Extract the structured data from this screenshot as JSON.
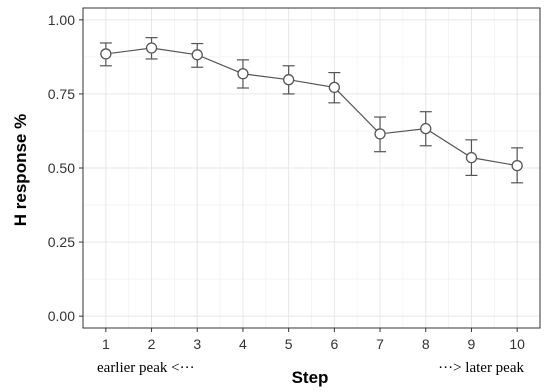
{
  "chart_data": {
    "type": "line",
    "xlabel": "Step",
    "ylabel": "H response %",
    "x": [
      1,
      2,
      3,
      4,
      5,
      6,
      7,
      8,
      9,
      10
    ],
    "series": [
      {
        "values": [
          0.885,
          0.905,
          0.882,
          0.818,
          0.798,
          0.772,
          0.615,
          0.633,
          0.535,
          0.508
        ],
        "error_low": [
          0.845,
          0.868,
          0.84,
          0.77,
          0.75,
          0.72,
          0.555,
          0.575,
          0.475,
          0.45
        ],
        "error_high": [
          0.922,
          0.94,
          0.92,
          0.865,
          0.845,
          0.822,
          0.672,
          0.69,
          0.595,
          0.568
        ]
      }
    ],
    "xlim": [
      0.5,
      10.5
    ],
    "ylim": [
      -0.04,
      1.04
    ],
    "x_ticks": [
      "1",
      "2",
      "3",
      "4",
      "5",
      "6",
      "7",
      "8",
      "9",
      "10"
    ],
    "y_ticks": [
      "0.00",
      "0.25",
      "0.50",
      "0.75",
      "1.00"
    ],
    "y_tick_values": [
      0,
      0.25,
      0.5,
      0.75,
      1.0
    ],
    "grid": true,
    "annotations": {
      "left": "earlier peak <···",
      "right": "···>  later peak"
    },
    "colors": {
      "line": "#555555",
      "marker_fill": "#ffffff",
      "grid": "#e6e6e6",
      "panel_border": "#333333"
    }
  }
}
